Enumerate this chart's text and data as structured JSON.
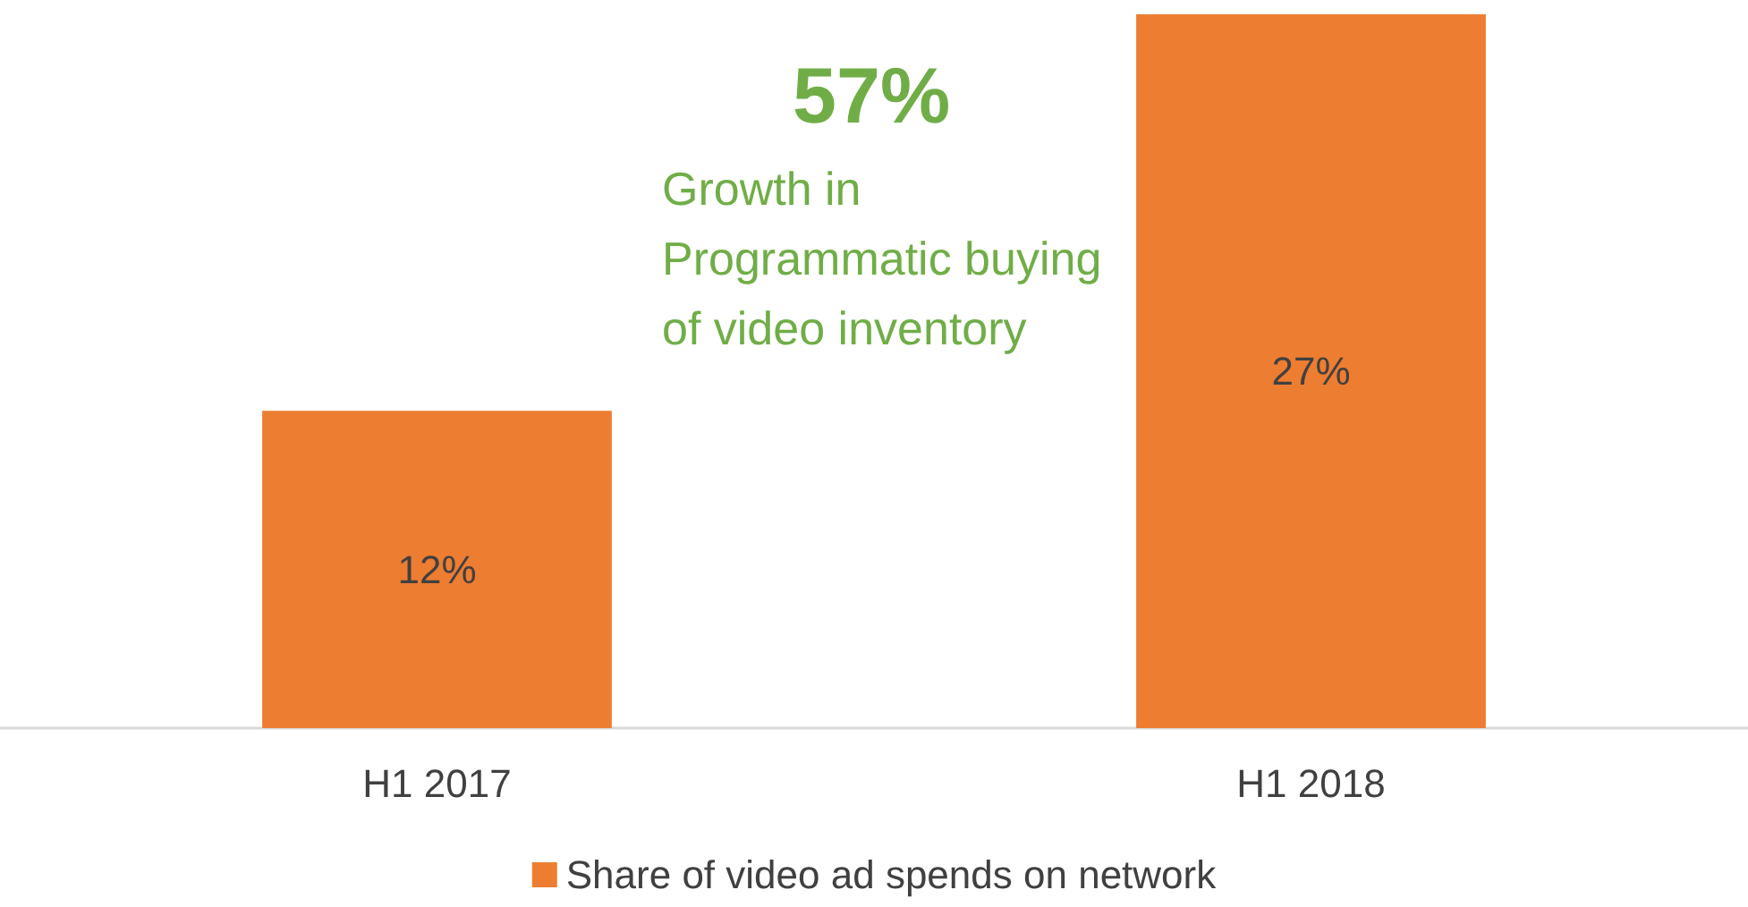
{
  "chart_data": {
    "type": "bar",
    "categories": [
      "H1 2017",
      "H1 2018"
    ],
    "series": [
      {
        "name": "Share of video ad spends on network",
        "color": "#ed7d31",
        "values": [
          12,
          27
        ],
        "value_labels": [
          "12%",
          "27%"
        ]
      }
    ],
    "annotations": [
      "57%",
      "Growth in Programmatic buying of video inventory"
    ],
    "legend": "bottom"
  }
}
